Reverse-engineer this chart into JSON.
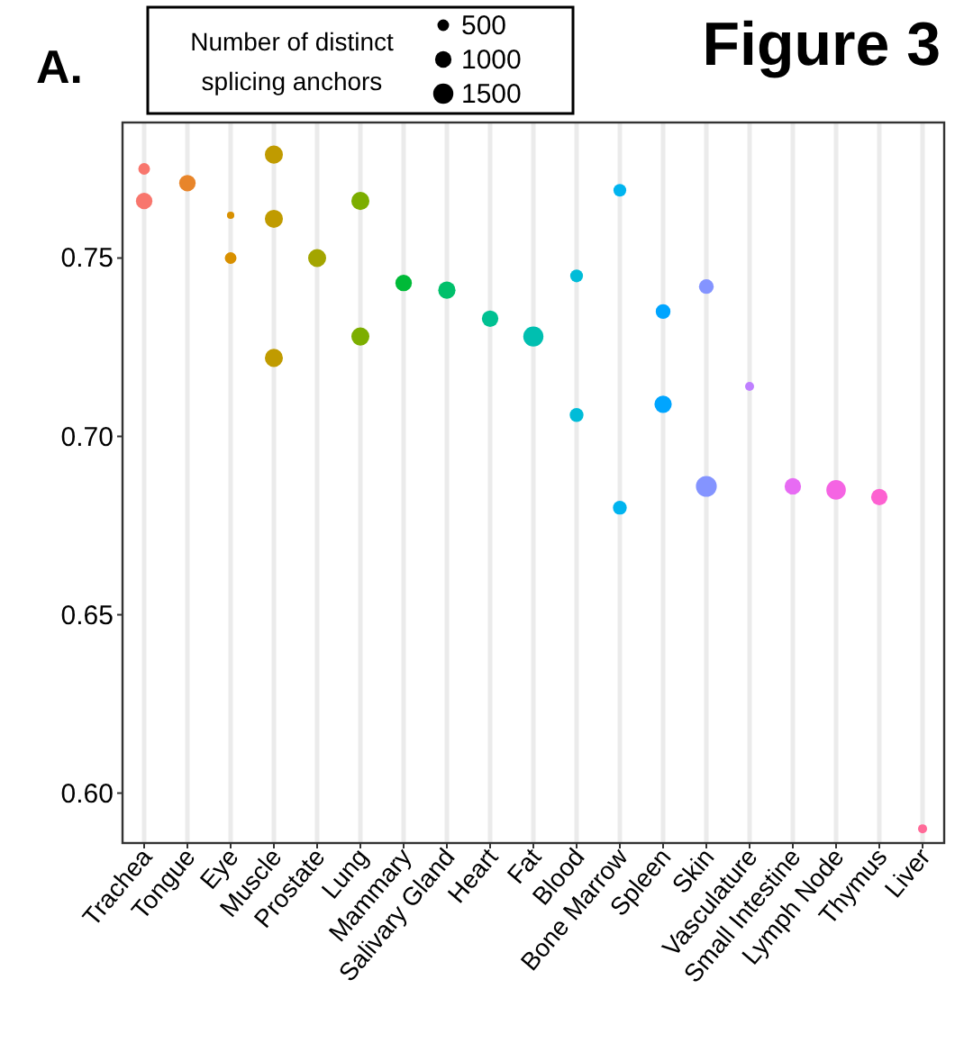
{
  "chart_data": {
    "type": "scatter",
    "title": "Figure 3",
    "annotations": [
      "A."
    ],
    "legend_title": "Number of distinct splicing anchors",
    "size_legend": [
      500,
      1000,
      1500
    ],
    "grid": "x",
    "marker": "circle",
    "categories": [
      "Trachea",
      "Tongue",
      "Eye",
      "Muscle",
      "Prostate",
      "Lung",
      "Mammary",
      "Salivary Gland",
      "Heart",
      "Fat",
      "Blood",
      "Bone Marrow",
      "Spleen",
      "Skin",
      "Vasculature",
      "Small Intestine",
      "Lymph Node",
      "Thymus",
      "Liver"
    ],
    "ylim": [
      0.586,
      0.788
    ],
    "yticks": [
      {
        "value": 0.6,
        "label": "0.60"
      },
      0.65,
      {
        "value": 0.7,
        "label": "0.70"
      },
      0.75
    ],
    "series": [
      {
        "color": "#f8766d",
        "x": [
          "Trachea",
          "Trachea"
        ],
        "values": [
          0.775,
          0.766
        ],
        "sizes": [
          500,
          1000
        ]
      },
      {
        "color": "#e8852a",
        "x": [
          "Tongue"
        ],
        "values": [
          0.771
        ],
        "sizes": [
          1000
        ]
      },
      {
        "color": "#d89000",
        "x": [
          "Eye",
          "Eye"
        ],
        "values": [
          0.762,
          0.75
        ],
        "sizes": [
          200,
          500
        ]
      },
      {
        "color": "#c09b00",
        "x": [
          "Muscle",
          "Muscle",
          "Muscle"
        ],
        "values": [
          0.779,
          0.761,
          0.722
        ],
        "sizes": [
          1200,
          1200,
          1200
        ]
      },
      {
        "color": "#a3a500",
        "x": [
          "Prostate"
        ],
        "values": [
          0.75
        ],
        "sizes": [
          1200
        ]
      },
      {
        "color": "#7cae00",
        "x": [
          "Lung",
          "Lung"
        ],
        "values": [
          0.766,
          0.728
        ],
        "sizes": [
          1200,
          1200
        ]
      },
      {
        "color": "#00ba38",
        "x": [
          "Mammary"
        ],
        "values": [
          0.743
        ],
        "sizes": [
          1000
        ]
      },
      {
        "color": "#00c06b",
        "x": [
          "Salivary Gland"
        ],
        "values": [
          0.741
        ],
        "sizes": [
          1100
        ]
      },
      {
        "color": "#00c192",
        "x": [
          "Heart"
        ],
        "values": [
          0.733
        ],
        "sizes": [
          1000
        ]
      },
      {
        "color": "#00bfb0",
        "x": [
          "Fat"
        ],
        "values": [
          0.728
        ],
        "sizes": [
          1500
        ]
      },
      {
        "color": "#00bcd8",
        "x": [
          "Blood",
          "Blood"
        ],
        "values": [
          0.745,
          0.706
        ],
        "sizes": [
          600,
          700
        ]
      },
      {
        "color": "#00b4ef",
        "x": [
          "Bone Marrow",
          "Bone Marrow"
        ],
        "values": [
          0.769,
          0.68
        ],
        "sizes": [
          600,
          700
        ]
      },
      {
        "color": "#00a5ff",
        "x": [
          "Spleen",
          "Spleen"
        ],
        "values": [
          0.735,
          0.709
        ],
        "sizes": [
          800,
          1100
        ]
      },
      {
        "color": "#8494ff",
        "x": [
          "Skin",
          "Skin"
        ],
        "values": [
          0.742,
          0.686
        ],
        "sizes": [
          800,
          1600
        ]
      },
      {
        "color": "#bf80ff",
        "x": [
          "Vasculature"
        ],
        "values": [
          0.714
        ],
        "sizes": [
          300
        ]
      },
      {
        "color": "#e76bf3",
        "x": [
          "Small Intestine"
        ],
        "values": [
          0.686
        ],
        "sizes": [
          1000
        ]
      },
      {
        "color": "#f564e3",
        "x": [
          "Lymph Node"
        ],
        "values": [
          0.685
        ],
        "sizes": [
          1400
        ]
      },
      {
        "color": "#fd61d1",
        "x": [
          "Thymus"
        ],
        "values": [
          0.683
        ],
        "sizes": [
          1000
        ]
      },
      {
        "color": "#ff6a98",
        "x": [
          "Liver"
        ],
        "values": [
          0.59
        ],
        "sizes": [
          300
        ]
      }
    ]
  }
}
